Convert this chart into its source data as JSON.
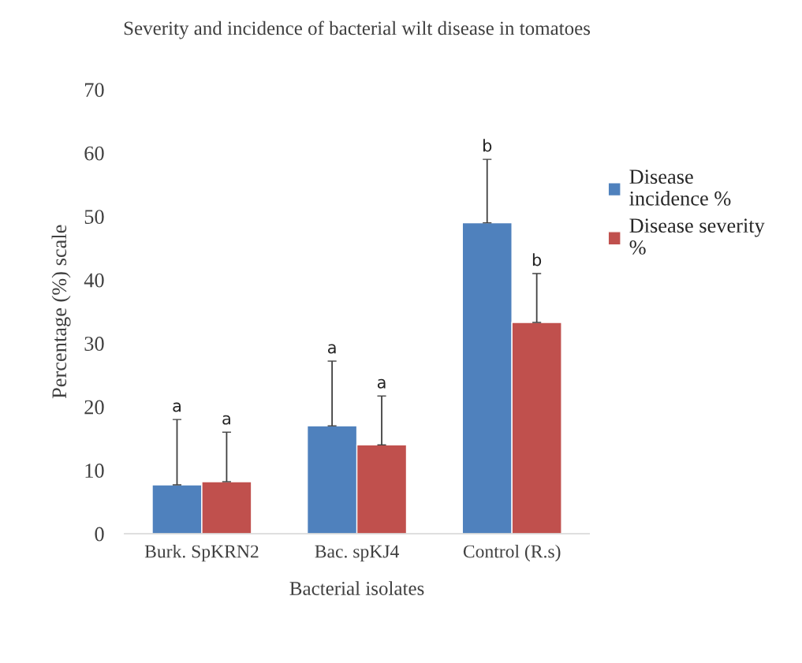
{
  "chart_data": {
    "type": "bar",
    "title": "Severity and incidence of bacterial wilt disease in tomatoes",
    "xlabel": "Bacterial isolates",
    "ylabel": "Percentage (%) scale",
    "categories": [
      "Burk. SpKRN2",
      "Bac. spKJ4",
      "Control (R.s)"
    ],
    "series": [
      {
        "name": "Disease incidence %",
        "color": "#4f81bd",
        "values": [
          7.7,
          17,
          49
        ],
        "errors": [
          [
            7.7,
            18
          ],
          [
            17,
            27.2
          ],
          [
            49,
            59
          ]
        ]
      },
      {
        "name": "Disease severity %",
        "color": "#c0504d",
        "values": [
          8.2,
          14,
          33.3
        ],
        "errors": [
          [
            8.2,
            16
          ],
          [
            14,
            21.7
          ],
          [
            33.3,
            41
          ]
        ]
      }
    ],
    "annotations": [
      "a",
      "a",
      "b",
      "a",
      "a",
      "b"
    ],
    "ylim": [
      0,
      70
    ],
    "yticks": [
      0,
      10,
      20,
      30,
      40,
      50,
      60,
      70
    ],
    "grid": false,
    "legend": "right"
  }
}
